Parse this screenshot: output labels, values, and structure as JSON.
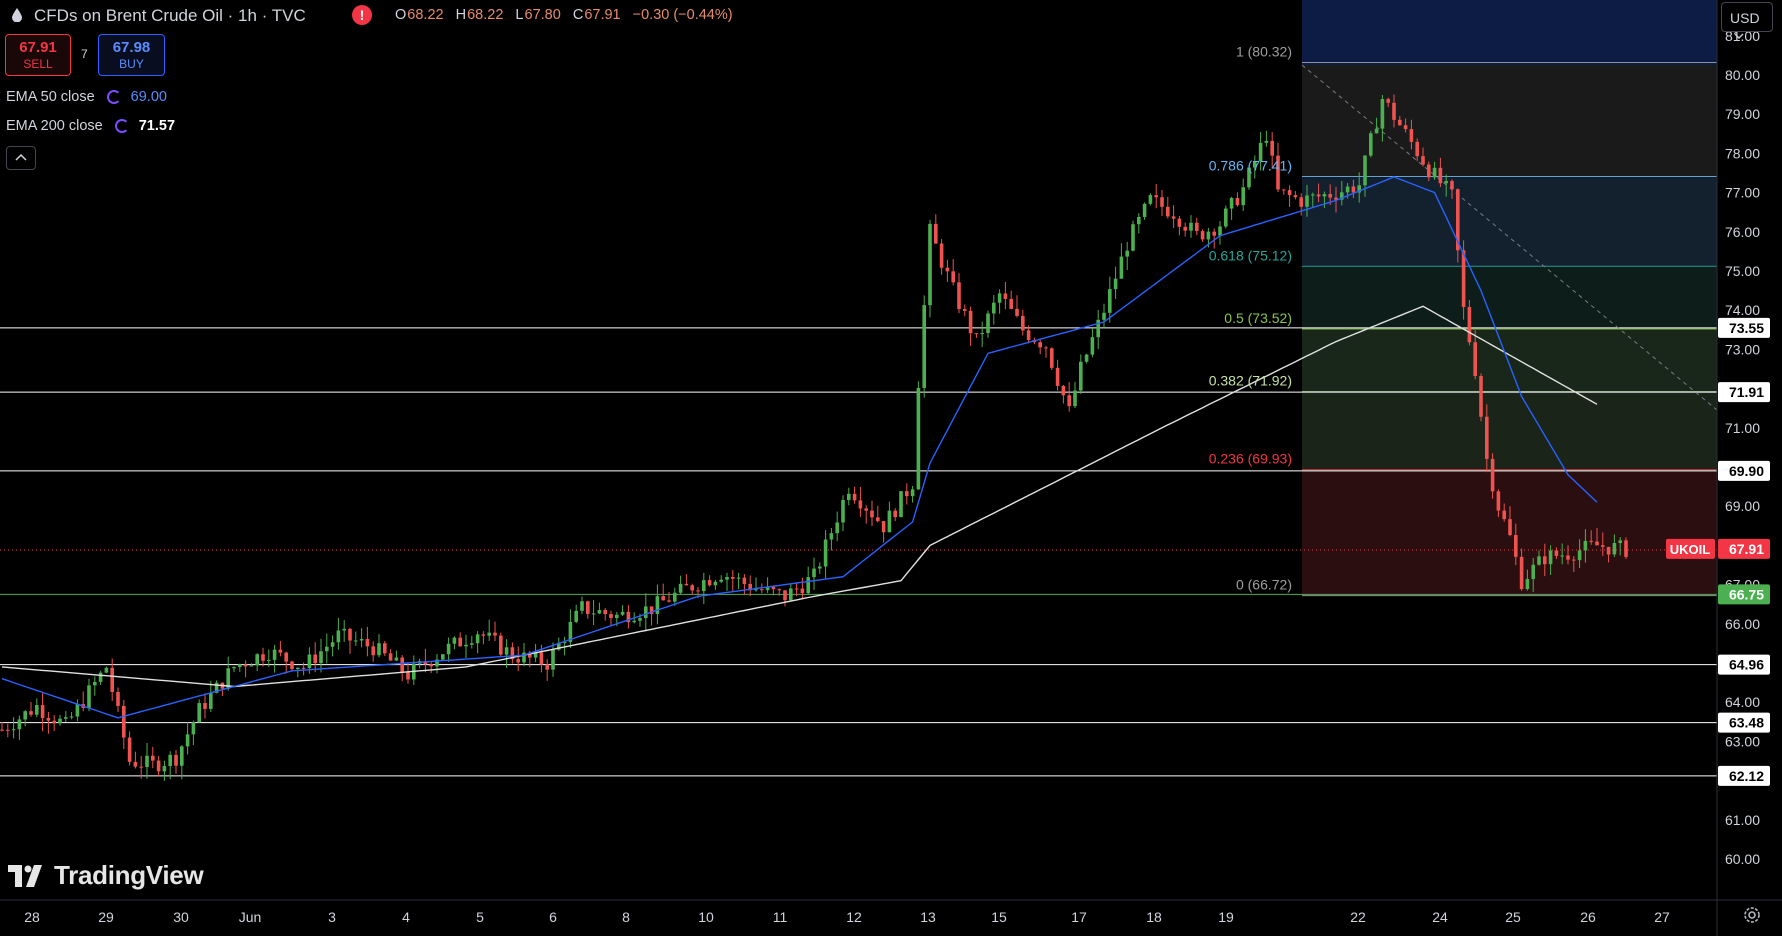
{
  "header": {
    "title": "CFDs on Brent Crude Oil · 1h · TVC",
    "alert_symbol": "!",
    "ohlc": {
      "o_label": "O",
      "o": "68.22",
      "h_label": "H",
      "h": "68.22",
      "l_label": "L",
      "l": "67.80",
      "c_label": "C",
      "c": "67.91",
      "change": "−0.30 (−0.44%)"
    }
  },
  "trade": {
    "sell_price": "67.91",
    "sell_label": "SELL",
    "spread": "7",
    "buy_price": "67.98",
    "buy_label": "BUY"
  },
  "indicators": [
    {
      "label": "EMA 50 close",
      "value": "69.00",
      "color": "#2962ff"
    },
    {
      "label": "EMA 200 close",
      "value": "71.57",
      "color": "#ffffff"
    }
  ],
  "currency_button": "USD",
  "logo_text": "TradingView",
  "chart_data": {
    "type": "candlestick",
    "symbol": "UKOIL",
    "last_price": 67.91,
    "last_price_label": "67.91",
    "y_axis_ticks": [
      "60.00",
      "61.00",
      "62.00",
      "63.00",
      "64.00",
      "65.00",
      "66.00",
      "67.00",
      "68.00",
      "69.00",
      "70.00",
      "71.00",
      "72.00",
      "73.00",
      "74.00",
      "75.00",
      "76.00",
      "77.00",
      "78.00",
      "79.00",
      "80.00",
      "81.00"
    ],
    "x_axis_ticks": [
      "28",
      "29",
      "30",
      "Jun",
      "3",
      "4",
      "5",
      "6",
      "8",
      "10",
      "11",
      "12",
      "13",
      "15",
      "17",
      "18",
      "19",
      "22",
      "24",
      "25",
      "26",
      "27"
    ],
    "horizontal_levels": [
      {
        "value": 73.55,
        "label": "73.55",
        "color": "#ffffff"
      },
      {
        "value": 71.91,
        "label": "71.91",
        "color": "#ffffff"
      },
      {
        "value": 69.9,
        "label": "69.90",
        "color": "#ffffff"
      },
      {
        "value": 66.75,
        "label": "66.75",
        "color": "#4caf50"
      },
      {
        "value": 64.96,
        "label": "64.96",
        "color": "#ffffff"
      },
      {
        "value": 63.48,
        "label": "63.48",
        "color": "#ffffff"
      },
      {
        "value": 62.12,
        "label": "62.12",
        "color": "#ffffff"
      }
    ],
    "fibonacci": [
      {
        "ratio": "1",
        "value": 80.32,
        "label": "1 (80.32)",
        "color": "#9e9e9e"
      },
      {
        "ratio": "0.786",
        "value": 77.41,
        "label": "0.786 (77.41)",
        "color": "#64b5f6"
      },
      {
        "ratio": "0.618",
        "value": 75.12,
        "label": "0.618 (75.12)",
        "color": "#26a69a"
      },
      {
        "ratio": "0.5",
        "value": 73.52,
        "label": "0.5 (73.52)",
        "color": "#8bc34a"
      },
      {
        "ratio": "0.382",
        "value": 71.92,
        "label": "0.382 (71.92)",
        "color": "#c5e1a5"
      },
      {
        "ratio": "0.236",
        "value": 69.93,
        "label": "0.236 (69.93)",
        "color": "#f23645"
      },
      {
        "ratio": "0",
        "value": 66.72,
        "label": "0 (66.72)",
        "color": "#9e9e9e"
      }
    ],
    "price_keypoints": [
      [
        0,
        63.3
      ],
      [
        6,
        63.9
      ],
      [
        11,
        63.4
      ],
      [
        18,
        64.9
      ],
      [
        22,
        62.5
      ],
      [
        26,
        62.4
      ],
      [
        30,
        62.6
      ],
      [
        34,
        63.8
      ],
      [
        40,
        64.9
      ],
      [
        46,
        65.3
      ],
      [
        52,
        64.9
      ],
      [
        58,
        65.7
      ],
      [
        64,
        65.4
      ],
      [
        70,
        64.7
      ],
      [
        76,
        65.3
      ],
      [
        82,
        65.8
      ],
      [
        88,
        65.2
      ],
      [
        94,
        65.0
      ],
      [
        100,
        66.4
      ],
      [
        106,
        66.2
      ],
      [
        112,
        66.4
      ],
      [
        118,
        66.9
      ],
      [
        124,
        67.3
      ],
      [
        130,
        66.9
      ],
      [
        135,
        66.7
      ],
      [
        140,
        67.2
      ],
      [
        146,
        69.5
      ],
      [
        152,
        68.5
      ],
      [
        157,
        69.6
      ],
      [
        158,
        72.2
      ],
      [
        160,
        76.0
      ],
      [
        164,
        74.5
      ],
      [
        168,
        73.2
      ],
      [
        172,
        74.4
      ],
      [
        176,
        73.5
      ],
      [
        180,
        73.1
      ],
      [
        184,
        71.4
      ],
      [
        186,
        72.5
      ],
      [
        190,
        74.0
      ],
      [
        194,
        75.7
      ],
      [
        198,
        76.8
      ],
      [
        202,
        76.5
      ],
      [
        206,
        75.9
      ],
      [
        210,
        76.2
      ],
      [
        214,
        77.1
      ],
      [
        218,
        78.5
      ],
      [
        220,
        77.0
      ],
      [
        224,
        76.8
      ],
      [
        230,
        77.0
      ],
      [
        234,
        77.2
      ],
      [
        238,
        79.4
      ],
      [
        242,
        78.5
      ],
      [
        246,
        77.6
      ],
      [
        250,
        76.9
      ],
      [
        252,
        74.0
      ],
      [
        254,
        72.5
      ],
      [
        256,
        70.2
      ],
      [
        258,
        69.0
      ],
      [
        260,
        68.2
      ],
      [
        262,
        67.1
      ],
      [
        266,
        67.7
      ],
      [
        270,
        67.8
      ],
      [
        275,
        68.0
      ],
      [
        280,
        67.9
      ]
    ],
    "ema50_keypoints": [
      [
        0,
        64.6
      ],
      [
        20,
        63.6
      ],
      [
        50,
        64.8
      ],
      [
        90,
        65.2
      ],
      [
        120,
        66.7
      ],
      [
        145,
        67.2
      ],
      [
        157,
        68.6
      ],
      [
        160,
        70.1
      ],
      [
        170,
        72.9
      ],
      [
        190,
        73.7
      ],
      [
        210,
        75.9
      ],
      [
        230,
        76.8
      ],
      [
        240,
        77.4
      ],
      [
        247,
        77.0
      ],
      [
        255,
        74.5
      ],
      [
        262,
        71.8
      ],
      [
        270,
        69.8
      ],
      [
        275,
        69.1
      ]
    ],
    "ema200_keypoints": [
      [
        0,
        64.9
      ],
      [
        40,
        64.4
      ],
      [
        80,
        64.9
      ],
      [
        110,
        65.8
      ],
      [
        140,
        66.7
      ],
      [
        155,
        67.1
      ],
      [
        160,
        68.0
      ],
      [
        180,
        69.5
      ],
      [
        200,
        71.0
      ],
      [
        230,
        73.2
      ],
      [
        245,
        74.1
      ],
      [
        275,
        71.6
      ]
    ]
  }
}
